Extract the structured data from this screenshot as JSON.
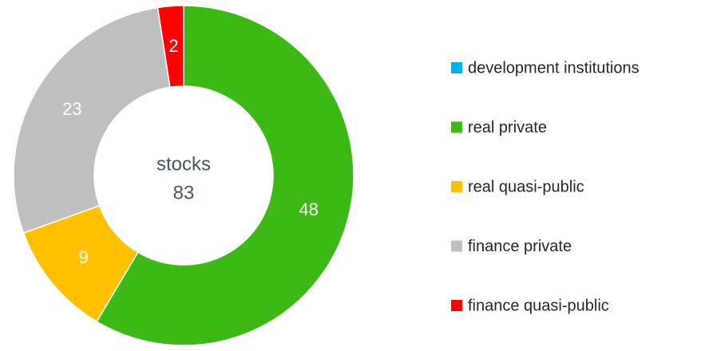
{
  "chart_data": {
    "type": "donut",
    "center_label": "stocks",
    "center_value": 83,
    "categories": [
      "development institutions",
      "real private",
      "real quasi-public",
      "finance private",
      "finance quasi-public"
    ],
    "values": [
      0,
      48,
      9,
      23,
      2
    ],
    "colors": [
      "#00b0f0",
      "#3cb914",
      "#ffc000",
      "#bfbfbf",
      "#ff0000"
    ],
    "legend": "right"
  }
}
